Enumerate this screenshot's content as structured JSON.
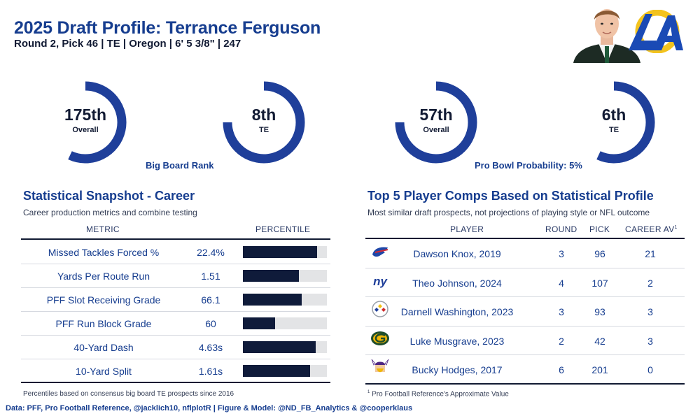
{
  "header": {
    "title": "2025 Draft Profile: Terrance Ferguson",
    "subtitle": "Round 2, Pick 46 | TE | Oregon | 6' 5 3/8\" | 247"
  },
  "colors": {
    "accent": "#163d8f",
    "ring": "#1f3f9a",
    "bar": "#0f1b3a",
    "bar_bg": "#e3e4e6"
  },
  "rings": {
    "big_board": {
      "caption": "Big Board Rank",
      "overall": {
        "rank": "175th",
        "label": "Overall"
      },
      "position": {
        "rank": "8th",
        "label": "TE"
      }
    },
    "pro_bowl": {
      "caption": "Pro Bowl Probability: 5%",
      "overall": {
        "rank": "57th",
        "label": "Overall"
      },
      "position": {
        "rank": "6th",
        "label": "TE"
      }
    }
  },
  "snapshot": {
    "title": "Statistical Snapshot - Career",
    "subtitle": "Career production metrics and combine testing",
    "col_metric": "METRIC",
    "col_percentile": "PERCENTILE",
    "rows": [
      {
        "metric": "Missed Tackles Forced %",
        "value": "22.4%",
        "percentile": 0.88
      },
      {
        "metric": "Yards Per Route Run",
        "value": "1.51",
        "percentile": 0.67
      },
      {
        "metric": "PFF Slot Receiving Grade",
        "value": "66.1",
        "percentile": 0.7
      },
      {
        "metric": "PFF Run Block Grade",
        "value": "60",
        "percentile": 0.38
      },
      {
        "metric": "40-Yard Dash",
        "value": "4.63s",
        "percentile": 0.87
      },
      {
        "metric": "10-Yard Split",
        "value": "1.61s",
        "percentile": 0.8
      }
    ],
    "footnote": "Percentiles based on consensus big board TE prospects since 2016"
  },
  "comps": {
    "title": "Top 5 Player Comps Based on Statistical Profile",
    "subtitle": "Most similar draft prospects, not projections of playing style or NFL outcome",
    "col_player": "PLAYER",
    "col_round": "ROUND",
    "col_pick": "PICK",
    "col_av": "CAREER AV",
    "col_av_mark": "1",
    "rows": [
      {
        "player": "Dawson Knox, 2019",
        "round": "3",
        "pick": "96",
        "av": "21",
        "team_icon": "bills-logo-icon"
      },
      {
        "player": "Theo Johnson, 2024",
        "round": "4",
        "pick": "107",
        "av": "2",
        "team_icon": "giants-logo-icon"
      },
      {
        "player": "Darnell Washington, 2023",
        "round": "3",
        "pick": "93",
        "av": "3",
        "team_icon": "steelers-logo-icon"
      },
      {
        "player": "Luke Musgrave, 2023",
        "round": "2",
        "pick": "42",
        "av": "3",
        "team_icon": "packers-logo-icon"
      },
      {
        "player": "Bucky Hodges, 2017",
        "round": "6",
        "pick": "201",
        "av": "0",
        "team_icon": "vikings-logo-icon"
      }
    ],
    "footnote_mark": "1",
    "footnote": "Pro Football Reference's Approximate Value"
  },
  "credit": "Data: PFF, Pro Football Reference, @jacklich10, nflplotR | Figure & Model: @ND_FB_Analytics & @cooperklaus"
}
